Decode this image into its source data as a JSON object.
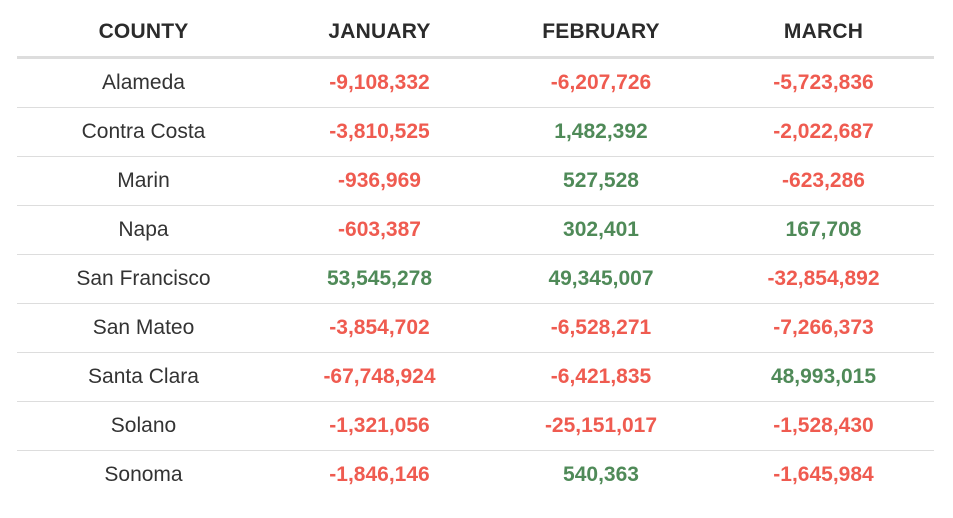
{
  "colors": {
    "negative": "#ef5b50",
    "positive": "#4f8a58",
    "header_text": "#2b2b2b",
    "body_text": "#333333",
    "rule": "#dddddd"
  },
  "table": {
    "headers": [
      "COUNTY",
      "JANUARY",
      "FEBRUARY",
      "MARCH"
    ],
    "rows": [
      {
        "county": "Alameda",
        "values": [
          "-9,108,332",
          "-6,207,726",
          "-5,723,836"
        ]
      },
      {
        "county": "Contra Costa",
        "values": [
          "-3,810,525",
          "1,482,392",
          "-2,022,687"
        ]
      },
      {
        "county": "Marin",
        "values": [
          "-936,969",
          "527,528",
          "-623,286"
        ]
      },
      {
        "county": "Napa",
        "values": [
          "-603,387",
          "302,401",
          "167,708"
        ]
      },
      {
        "county": "San Francisco",
        "values": [
          "53,545,278",
          "49,345,007",
          "-32,854,892"
        ]
      },
      {
        "county": "San Mateo",
        "values": [
          "-3,854,702",
          "-6,528,271",
          "-7,266,373"
        ]
      },
      {
        "county": "Santa Clara",
        "values": [
          "-67,748,924",
          "-6,421,835",
          "48,993,015"
        ]
      },
      {
        "county": "Solano",
        "values": [
          "-1,321,056",
          "-25,151,017",
          "-1,528,430"
        ]
      },
      {
        "county": "Sonoma",
        "values": [
          "-1,846,146",
          "540,363",
          "-1,645,984"
        ]
      }
    ]
  }
}
